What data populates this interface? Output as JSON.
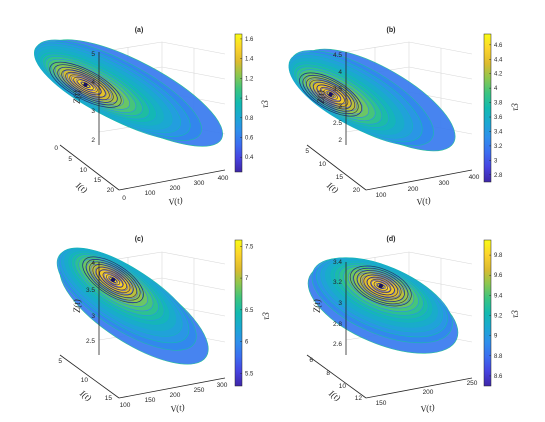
{
  "colors": {
    "colormap": [
      "#3e26a8",
      "#4743e0",
      "#3c6df0",
      "#2f8fec",
      "#1ba8d2",
      "#13bab0",
      "#3bc480",
      "#8cc750",
      "#ddbb2e",
      "#fcd42c",
      "#f9fb15"
    ]
  },
  "chart_data": [
    {
      "type": "surface3d",
      "title": "(a)",
      "xlabel": "V(t)",
      "ylabel": "I(t)",
      "zlabel": "Z(t)",
      "colorbar_label": "τ3",
      "xticks": [
        "0",
        "100",
        "200",
        "300",
        "400"
      ],
      "yticks": [
        "0",
        "5",
        "10",
        "15",
        "20"
      ],
      "zticks": [
        "2",
        "3",
        "4",
        "5"
      ],
      "cbticks": [
        "0.4",
        "0.6",
        "0.8",
        "1",
        "1.2",
        "1.4",
        "1.6"
      ],
      "clim": [
        0.25,
        1.65
      ],
      "xlim": [
        0,
        400
      ],
      "ylim": [
        0,
        20
      ],
      "zlim": [
        2,
        5
      ],
      "center": {
        "V": 60,
        "I": 5,
        "Z": 3.7
      },
      "n_rings": 18
    },
    {
      "type": "surface3d",
      "title": "(b)",
      "xlabel": "V(t)",
      "ylabel": "I(t)",
      "zlabel": "Z(t)",
      "colorbar_label": "τ3",
      "xticks": [
        "100",
        "200",
        "300",
        "400"
      ],
      "yticks": [
        "5",
        "10",
        "15",
        "20"
      ],
      "zticks": [
        "2",
        "2.5",
        "3",
        "3.5",
        "4",
        "4.5"
      ],
      "cbticks": [
        "2.8",
        "3",
        "3.2",
        "3.4",
        "3.6",
        "3.8",
        "4",
        "4.2",
        "4.4",
        "4.6"
      ],
      "clim": [
        2.7,
        4.75
      ],
      "xlim": [
        100,
        400
      ],
      "ylim": [
        5,
        20
      ],
      "zlim": [
        2,
        4.5
      ],
      "center": {
        "V": 150,
        "I": 8,
        "Z": 3.4
      },
      "n_rings": 16
    },
    {
      "type": "surface3d",
      "title": "(c)",
      "xlabel": "V(t)",
      "ylabel": "I(t)",
      "zlabel": "Z(t)",
      "colorbar_label": "τ3",
      "xticks": [
        "100",
        "150",
        "200",
        "250",
        "300"
      ],
      "yticks": [
        "5",
        "10",
        "15"
      ],
      "zticks": [
        "2.5",
        "3",
        "3.5",
        "4"
      ],
      "cbticks": [
        "5.5",
        "6",
        "6.5",
        "7",
        "7.5"
      ],
      "clim": [
        5.3,
        7.6
      ],
      "xlim": [
        100,
        300
      ],
      "ylim": [
        5,
        15
      ],
      "zlim": [
        2.5,
        4
      ],
      "center": {
        "V": 165,
        "I": 8,
        "Z": 3.25
      },
      "n_rings": 16
    },
    {
      "type": "surface3d",
      "title": "(d)",
      "xlabel": "V(t)",
      "ylabel": "I(t)",
      "zlabel": "Z(t)",
      "colorbar_label": "τ3",
      "xticks": [
        "150",
        "200",
        "250"
      ],
      "yticks": [
        "6",
        "8",
        "10",
        "12"
      ],
      "zticks": [
        "2.6",
        "2.8",
        "3",
        "3.2",
        "3.4"
      ],
      "cbticks": [
        "8.6",
        "8.8",
        "9",
        "9.2",
        "9.4",
        "9.6",
        "9.8"
      ],
      "clim": [
        8.5,
        9.95
      ],
      "xlim": [
        150,
        250
      ],
      "ylim": [
        6,
        12
      ],
      "zlim": [
        2.6,
        3.4
      ],
      "center": {
        "V": 195,
        "I": 8.5,
        "Z": 3.0
      },
      "n_rings": 16
    }
  ]
}
